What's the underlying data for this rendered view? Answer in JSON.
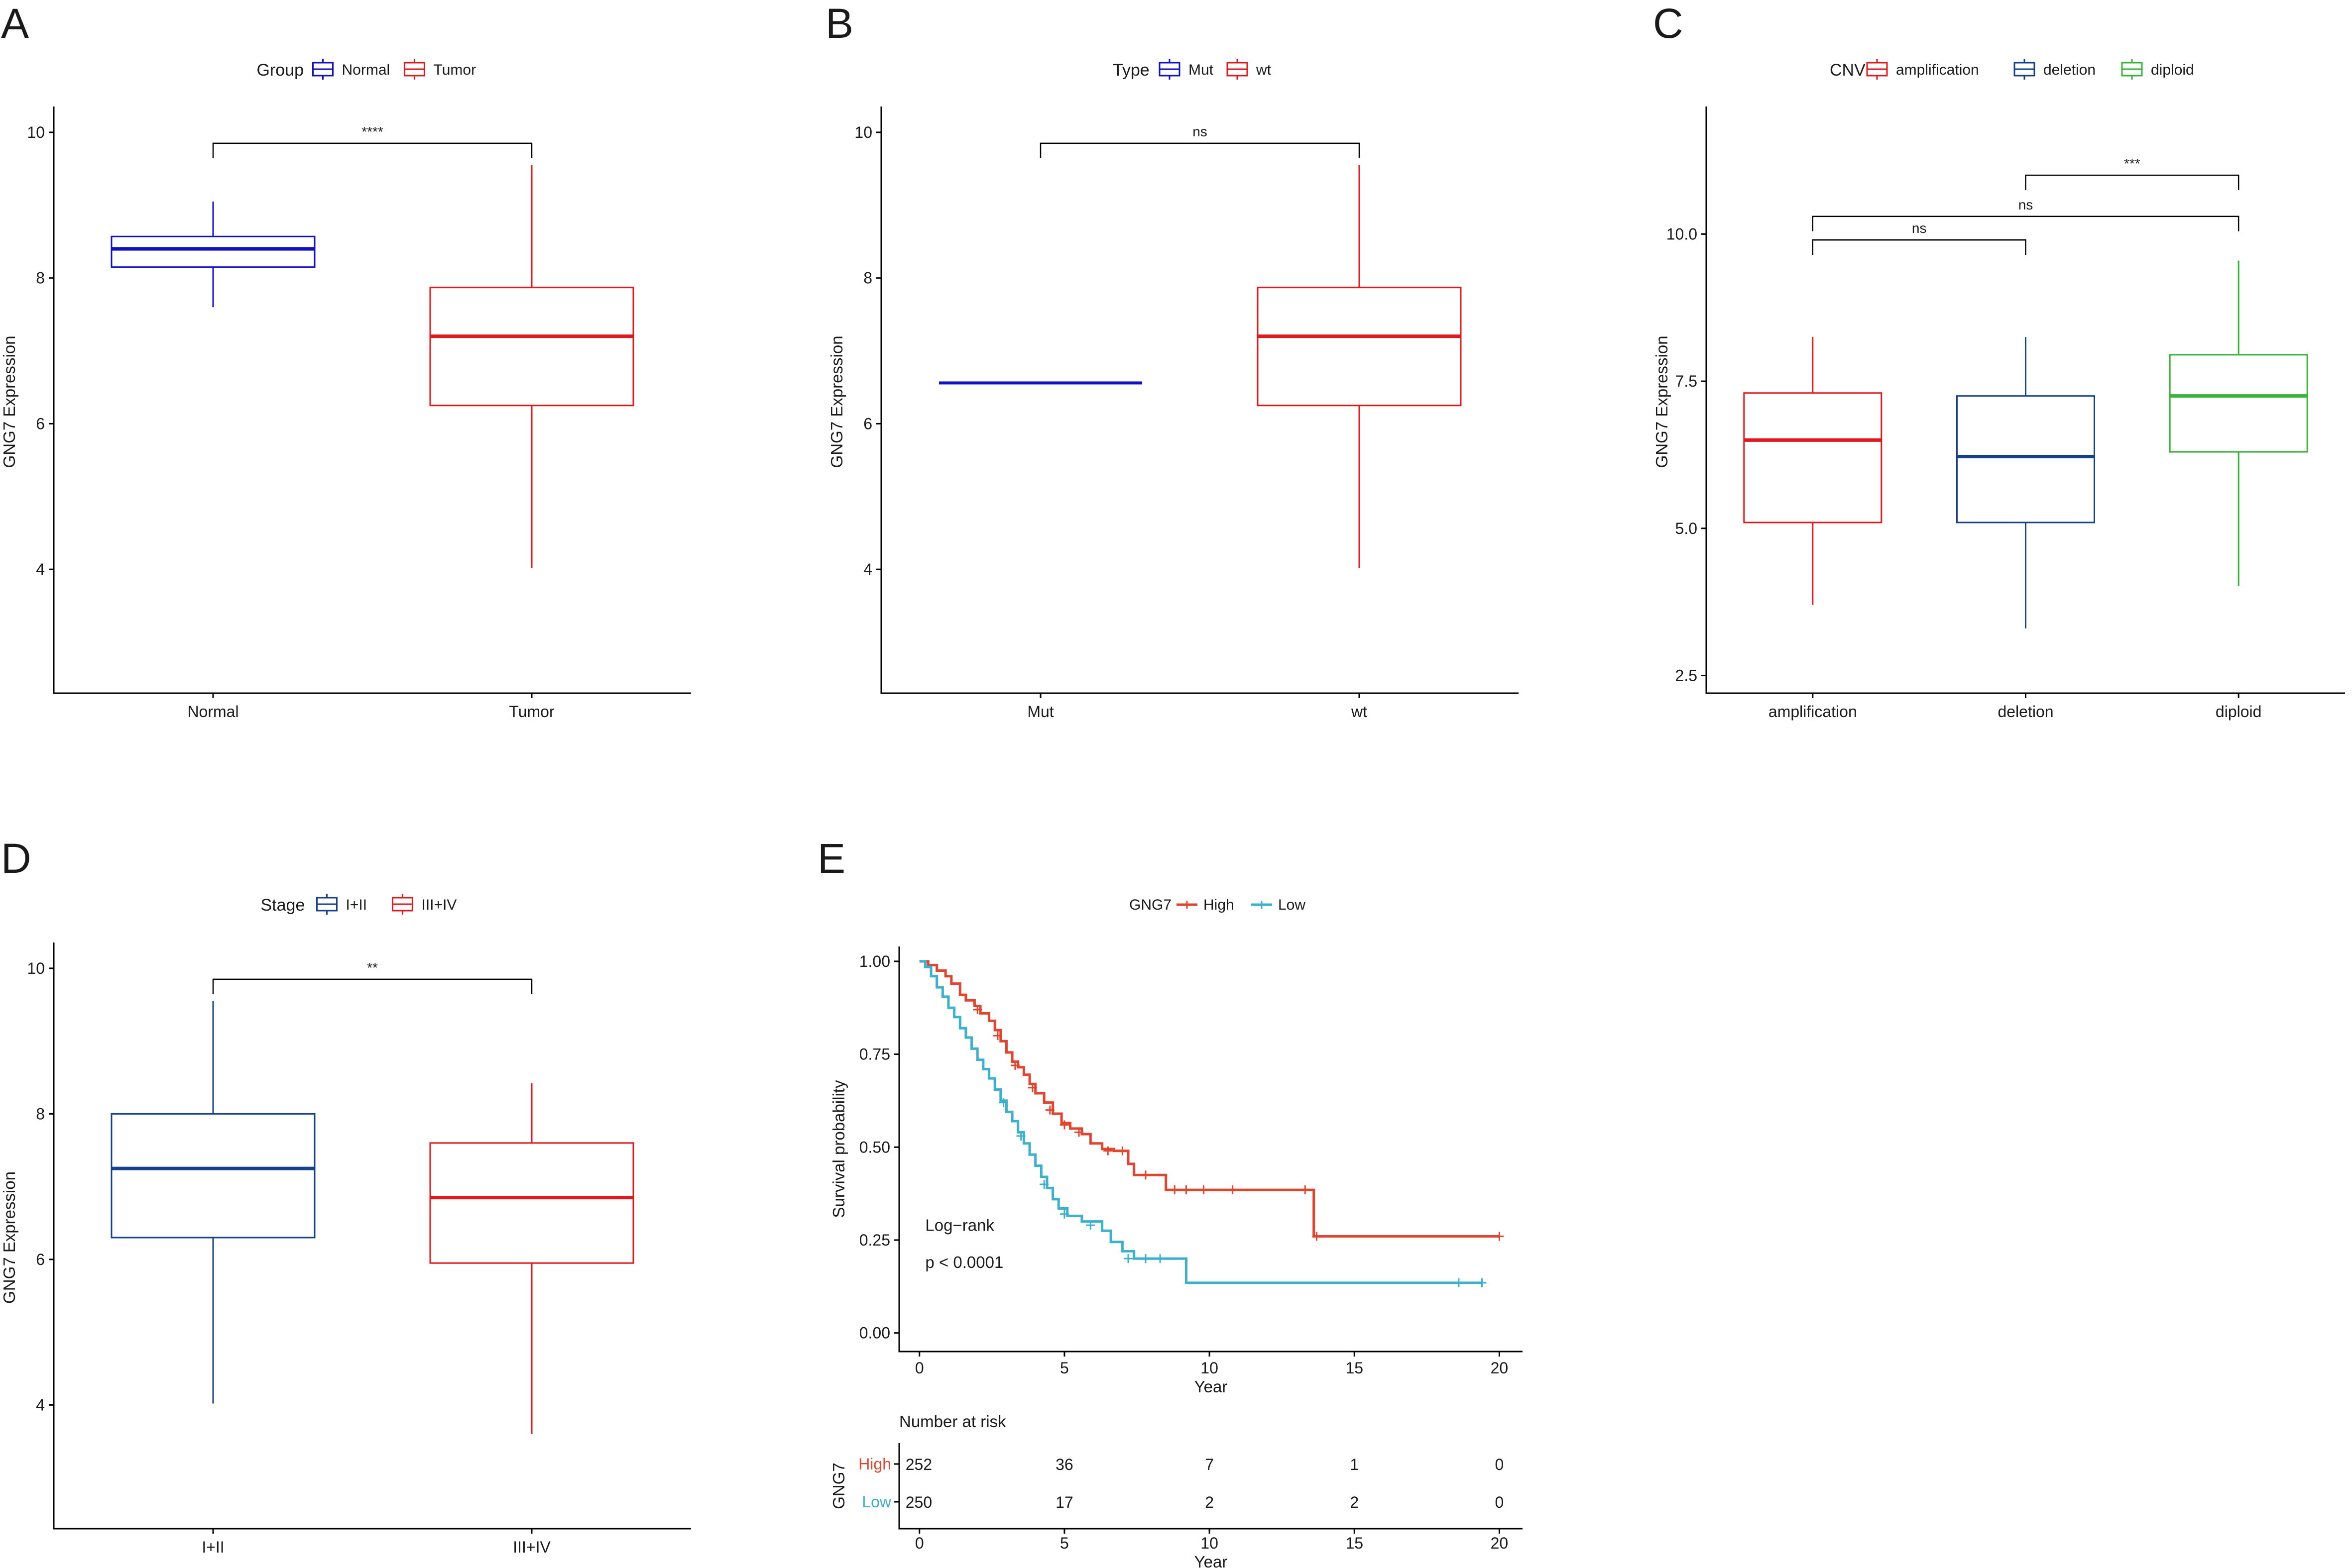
{
  "panels_labels": [
    "A",
    "B",
    "C",
    "D",
    "E"
  ],
  "colors": {
    "blue_dark": "#1010c8",
    "red": "#e1191c",
    "navy": "#15418f",
    "green": "#35b435",
    "km_high": "#e2452f",
    "km_low": "#3bb0cf",
    "bracket": "#000000"
  },
  "chart_data": [
    {
      "panel": "A",
      "type": "box",
      "legend_title": "Group",
      "ylabel": "GNG7 Expression",
      "ylim": [
        2.3,
        10.3
      ],
      "yticks": [
        4,
        6,
        8,
        10
      ],
      "categories": [
        "Normal",
        "Tumor"
      ],
      "boxes": [
        {
          "name": "Normal",
          "color": "#1010c8",
          "min": 7.6,
          "q1": 8.15,
          "median": 8.4,
          "q3": 8.57,
          "max": 9.05
        },
        {
          "name": "Tumor",
          "color": "#e1191c",
          "min": 4.02,
          "q1": 6.25,
          "median": 7.2,
          "q3": 7.87,
          "max": 9.55
        }
      ],
      "comparisons": [
        {
          "from": 0,
          "to": 1,
          "label": "****",
          "y": 9.85
        }
      ]
    },
    {
      "panel": "B",
      "type": "box",
      "legend_title": "Type",
      "ylabel": "GNG7 Expression",
      "ylim": [
        2.3,
        10.3
      ],
      "yticks": [
        4,
        6,
        8,
        10
      ],
      "categories": [
        "Mut",
        "wt"
      ],
      "boxes": [
        {
          "name": "Mut",
          "color": "#1010c8",
          "min": 6.56,
          "q1": 6.56,
          "median": 6.56,
          "q3": 6.56,
          "max": 6.56
        },
        {
          "name": "wt",
          "color": "#e1191c",
          "min": 4.02,
          "q1": 6.25,
          "median": 7.2,
          "q3": 7.87,
          "max": 9.55
        }
      ],
      "comparisons": [
        {
          "from": 0,
          "to": 1,
          "label": "ns",
          "y": 9.85
        }
      ]
    },
    {
      "panel": "C",
      "type": "box",
      "legend_title": "CNV",
      "ylabel": "GNG7 Expression",
      "ylim": [
        2.2,
        12.1
      ],
      "yticks": [
        2.5,
        5.0,
        7.5,
        10.0
      ],
      "ytick_labels": [
        "2.5",
        "5.0",
        "7.5",
        "10.0"
      ],
      "categories": [
        "amplification",
        "deletion",
        "diploid"
      ],
      "boxes": [
        {
          "name": "amplification",
          "color": "#e1191c",
          "min": 3.7,
          "q1": 5.1,
          "median": 6.5,
          "q3": 7.3,
          "max": 8.25
        },
        {
          "name": "deletion",
          "color": "#15418f",
          "min": 3.3,
          "q1": 5.1,
          "median": 6.22,
          "q3": 7.25,
          "max": 8.25
        },
        {
          "name": "diploid",
          "color": "#35b435",
          "min": 4.02,
          "q1": 6.3,
          "median": 7.25,
          "q3": 7.95,
          "max": 9.55
        }
      ],
      "comparisons": [
        {
          "from": 1,
          "to": 2,
          "label": "***",
          "y": 11.0
        },
        {
          "from": 0,
          "to": 2,
          "label": "ns",
          "y": 10.3
        },
        {
          "from": 0,
          "to": 1,
          "label": "ns",
          "y": 9.9
        }
      ]
    },
    {
      "panel": "D",
      "type": "box",
      "legend_title": "Stage",
      "ylabel": "GNG7 Expression",
      "ylim": [
        2.3,
        10.3
      ],
      "yticks": [
        4,
        6,
        8,
        10
      ],
      "categories": [
        "I+II",
        "III+IV"
      ],
      "boxes": [
        {
          "name": "I+II",
          "color": "#15418f",
          "min": 4.02,
          "q1": 6.3,
          "median": 7.25,
          "q3": 8.0,
          "max": 9.55
        },
        {
          "name": "III+IV",
          "color": "#e1191c",
          "min": 3.6,
          "q1": 5.95,
          "median": 6.85,
          "q3": 7.6,
          "max": 8.42
        }
      ],
      "comparisons": [
        {
          "from": 0,
          "to": 1,
          "label": "**",
          "y": 9.85
        }
      ]
    },
    {
      "panel": "E",
      "type": "line",
      "subtype": "kaplan-meier",
      "legend_title": "GNG7",
      "ylabel": "Survival probability",
      "xlabel": "Year",
      "xlim": [
        -0.7,
        20.8
      ],
      "ylim": [
        -0.05,
        1.04
      ],
      "xticks": [
        0,
        5,
        10,
        15,
        20
      ],
      "yticks": [
        0,
        0.25,
        0.5,
        0.75,
        1.0
      ],
      "ytick_labels": [
        "0.00",
        "0.25",
        "0.50",
        "0.75",
        "1.00"
      ],
      "annotation": [
        "Log−rank",
        "p < 0.0001"
      ],
      "series": [
        {
          "name": "High",
          "color": "#e2452f",
          "steps": [
            [
              0,
              1.0
            ],
            [
              0.3,
              0.99
            ],
            [
              0.6,
              0.975
            ],
            [
              0.9,
              0.96
            ],
            [
              1.1,
              0.94
            ],
            [
              1.4,
              0.91
            ],
            [
              1.6,
              0.895
            ],
            [
              1.9,
              0.88
            ],
            [
              2.1,
              0.86
            ],
            [
              2.4,
              0.84
            ],
            [
              2.6,
              0.815
            ],
            [
              2.8,
              0.785
            ],
            [
              3.0,
              0.755
            ],
            [
              3.2,
              0.73
            ],
            [
              3.4,
              0.715
            ],
            [
              3.6,
              0.695
            ],
            [
              3.8,
              0.67
            ],
            [
              4.0,
              0.645
            ],
            [
              4.3,
              0.62
            ],
            [
              4.6,
              0.59
            ],
            [
              4.9,
              0.565
            ],
            [
              5.2,
              0.55
            ],
            [
              5.6,
              0.535
            ],
            [
              5.9,
              0.51
            ],
            [
              6.3,
              0.495
            ],
            [
              6.7,
              0.49
            ],
            [
              7.2,
              0.455
            ],
            [
              7.4,
              0.425
            ],
            [
              8.5,
              0.385
            ],
            [
              13.6,
              0.26
            ],
            [
              20,
              0.26
            ]
          ],
          "censor": [
            [
              2.0,
              0.87
            ],
            [
              2.7,
              0.8
            ],
            [
              3.3,
              0.72
            ],
            [
              3.9,
              0.66
            ],
            [
              4.5,
              0.6
            ],
            [
              5.0,
              0.56
            ],
            [
              5.5,
              0.54
            ],
            [
              6.5,
              0.49
            ],
            [
              7.0,
              0.49
            ],
            [
              7.8,
              0.425
            ],
            [
              8.8,
              0.385
            ],
            [
              9.2,
              0.385
            ],
            [
              9.8,
              0.385
            ],
            [
              10.8,
              0.385
            ],
            [
              13.3,
              0.385
            ],
            [
              13.7,
              0.26
            ],
            [
              20,
              0.26
            ]
          ]
        },
        {
          "name": "Low",
          "color": "#3bb0cf",
          "steps": [
            [
              0,
              1.0
            ],
            [
              0.2,
              0.985
            ],
            [
              0.4,
              0.96
            ],
            [
              0.6,
              0.93
            ],
            [
              0.8,
              0.905
            ],
            [
              1.0,
              0.875
            ],
            [
              1.2,
              0.85
            ],
            [
              1.4,
              0.82
            ],
            [
              1.6,
              0.795
            ],
            [
              1.8,
              0.765
            ],
            [
              2.0,
              0.735
            ],
            [
              2.2,
              0.71
            ],
            [
              2.4,
              0.685
            ],
            [
              2.6,
              0.655
            ],
            [
              2.8,
              0.625
            ],
            [
              3.0,
              0.595
            ],
            [
              3.2,
              0.57
            ],
            [
              3.4,
              0.54
            ],
            [
              3.6,
              0.51
            ],
            [
              3.8,
              0.48
            ],
            [
              4.0,
              0.45
            ],
            [
              4.2,
              0.42
            ],
            [
              4.4,
              0.39
            ],
            [
              4.6,
              0.36
            ],
            [
              4.8,
              0.335
            ],
            [
              5.1,
              0.315
            ],
            [
              5.6,
              0.3
            ],
            [
              6.3,
              0.275
            ],
            [
              6.6,
              0.245
            ],
            [
              7.0,
              0.22
            ],
            [
              7.4,
              0.2
            ],
            [
              9.2,
              0.135
            ],
            [
              19.4,
              0.135
            ]
          ],
          "censor": [
            [
              2.9,
              0.62
            ],
            [
              3.5,
              0.53
            ],
            [
              4.3,
              0.4
            ],
            [
              5.0,
              0.32
            ],
            [
              5.9,
              0.29
            ],
            [
              7.2,
              0.2
            ],
            [
              7.8,
              0.2
            ],
            [
              8.3,
              0.2
            ],
            [
              18.6,
              0.135
            ],
            [
              19.4,
              0.135
            ]
          ]
        }
      ],
      "risk_table": {
        "title": "Number at risk",
        "ylabel": "GNG7",
        "xlabel": "Year",
        "times": [
          0,
          5,
          10,
          15,
          20
        ],
        "rows": [
          {
            "name": "High",
            "values": [
              252,
              36,
              7,
              1,
              0
            ]
          },
          {
            "name": "Low",
            "values": [
              250,
              17,
              2,
              2,
              0
            ]
          }
        ]
      }
    }
  ]
}
